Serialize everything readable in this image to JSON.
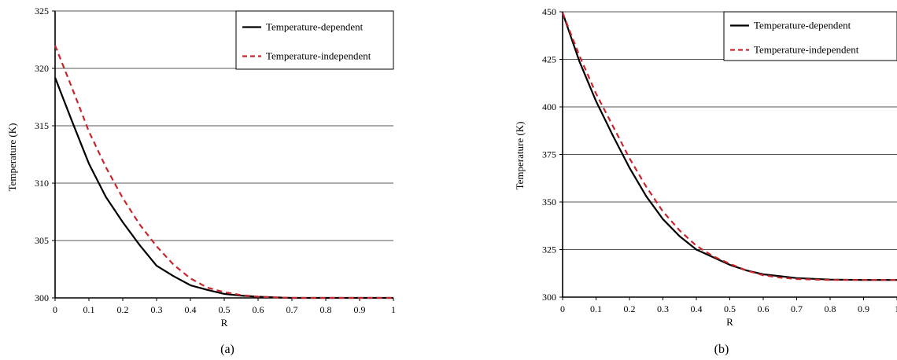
{
  "chart_data": [
    {
      "type": "line",
      "panel_label": "(a)",
      "xlabel": "R",
      "ylabel": "Temperature (K)",
      "xlim": [
        0,
        1
      ],
      "ylim": [
        300,
        325
      ],
      "xticks": [
        "0",
        "0.1",
        "0.2",
        "0.3",
        "0.4",
        "0.5",
        "0.6",
        "0.7",
        "0.8",
        "0.9",
        "1"
      ],
      "yticks": [
        "300",
        "305",
        "310",
        "315",
        "320",
        "325"
      ],
      "grid": "horizontal",
      "legend_position": "top-right",
      "series": [
        {
          "name": "Temperature-dependent",
          "color": "#000000",
          "style": "solid",
          "x": [
            0,
            0.05,
            0.1,
            0.15,
            0.2,
            0.25,
            0.3,
            0.35,
            0.4,
            0.45,
            0.5,
            0.55,
            0.6,
            0.65,
            0.7,
            0.8,
            0.9,
            1.0
          ],
          "y": [
            319.2,
            315.4,
            311.7,
            308.8,
            306.6,
            304.6,
            302.8,
            301.9,
            301.1,
            300.7,
            300.35,
            300.2,
            300.1,
            300.05,
            300.0,
            300.0,
            300.0,
            300.0
          ]
        },
        {
          "name": "Temperature-independent",
          "color": "#c8262a",
          "style": "dashed",
          "x": [
            0,
            0.05,
            0.1,
            0.15,
            0.2,
            0.25,
            0.3,
            0.35,
            0.4,
            0.45,
            0.5,
            0.55,
            0.6,
            0.65,
            0.7,
            0.8,
            0.9,
            1.0
          ],
          "y": [
            322.0,
            318.3,
            314.5,
            311.4,
            308.7,
            306.4,
            304.5,
            302.9,
            301.7,
            300.9,
            300.5,
            300.25,
            300.1,
            300.05,
            300.0,
            300.0,
            300.0,
            300.0
          ]
        }
      ]
    },
    {
      "type": "line",
      "panel_label": "(b)",
      "xlabel": "R",
      "ylabel": "Temperature (K)",
      "xlim": [
        0,
        1
      ],
      "ylim": [
        300,
        450
      ],
      "xticks": [
        "0",
        "0.1",
        "0.2",
        "0.3",
        "0.4",
        "0.5",
        "0.6",
        "0.7",
        "0.8",
        "0.9",
        "1"
      ],
      "yticks": [
        "300",
        "325",
        "350",
        "375",
        "400",
        "425",
        "450"
      ],
      "grid": "horizontal",
      "legend_position": "top-right",
      "series": [
        {
          "name": "Temperature-dependent",
          "color": "#000000",
          "style": "solid",
          "x": [
            0,
            0.05,
            0.1,
            0.15,
            0.2,
            0.25,
            0.3,
            0.35,
            0.4,
            0.45,
            0.5,
            0.55,
            0.6,
            0.65,
            0.7,
            0.8,
            0.9,
            1.0
          ],
          "y": [
            449.5,
            424,
            403,
            385,
            368,
            353,
            341,
            332,
            325,
            321,
            317,
            314,
            312,
            311,
            310,
            309.2,
            309,
            309
          ]
        },
        {
          "name": "Temperature-independent",
          "color": "#c8262a",
          "style": "dashed",
          "x": [
            0,
            0.05,
            0.1,
            0.15,
            0.2,
            0.25,
            0.3,
            0.35,
            0.4,
            0.45,
            0.5,
            0.55,
            0.6,
            0.65,
            0.7,
            0.8,
            0.9,
            1.0
          ],
          "y": [
            449.5,
            427,
            407,
            390,
            373,
            358,
            345,
            335,
            327,
            321.5,
            317.5,
            314,
            311.5,
            310.3,
            309.5,
            309,
            309,
            309
          ]
        }
      ]
    }
  ]
}
